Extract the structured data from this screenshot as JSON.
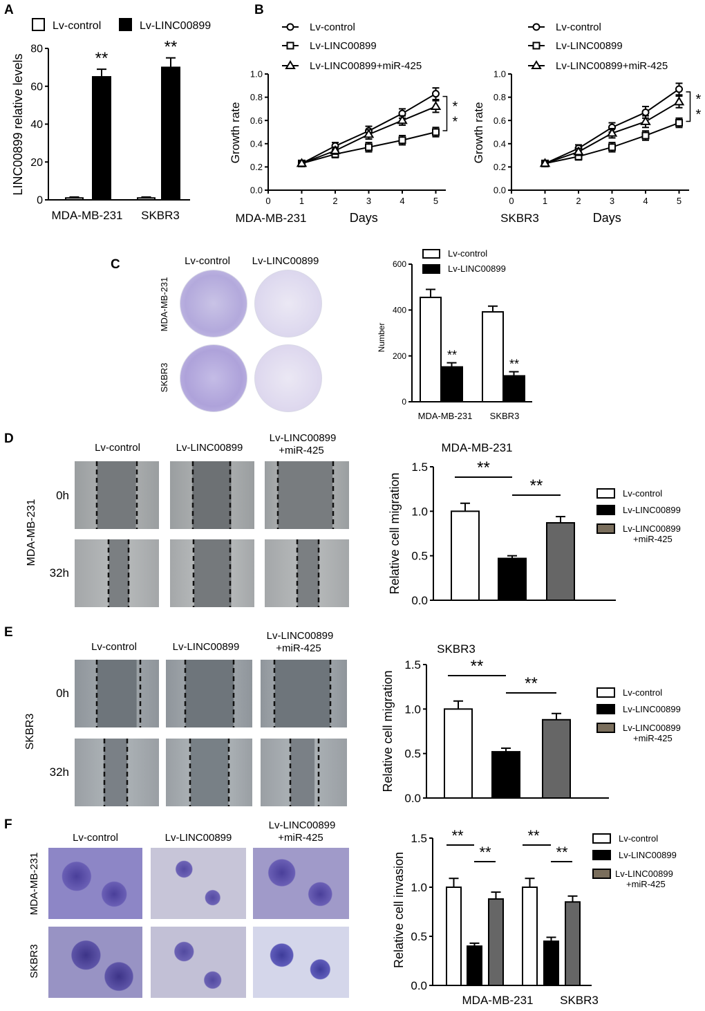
{
  "panels": {
    "A": {
      "letter": "A",
      "legend": [
        "Lv-control",
        "Lv-LINC00899"
      ],
      "sig": "**",
      "chart_data": {
        "type": "bar",
        "categories": [
          "MDA-MB-231",
          "SKBR3"
        ],
        "series": [
          {
            "name": "Lv-control",
            "values": [
              1,
              1
            ],
            "errors": [
              0.5,
              0.5
            ],
            "color": "#ffffff"
          },
          {
            "name": "Lv-LINC00899",
            "values": [
              65,
              70
            ],
            "errors": [
              4,
              5
            ],
            "color": "#000000"
          }
        ],
        "ylabel": "LINC00899 relative levels",
        "ylim": [
          0,
          80
        ],
        "yticks": [
          "0",
          "20",
          "40",
          "60",
          "80"
        ]
      }
    },
    "B": {
      "letter": "B",
      "legend": [
        "Lv-control",
        "Lv-LINC00899",
        "Lv-LINC00899+miR-425"
      ],
      "sig": "**",
      "charts": [
        {
          "type": "line",
          "cell_line": "MDA-MB-231",
          "xlabel": "Days",
          "ylabel": "Growth rate",
          "x": [
            1,
            2,
            3,
            4,
            5
          ],
          "xticks": [
            "0",
            "1",
            "2",
            "3",
            "4",
            "5"
          ],
          "yticks": [
            "0.0",
            "0.2",
            "0.4",
            "0.6",
            "0.8",
            "1.0"
          ],
          "ylim": [
            0,
            1.0
          ],
          "series": [
            {
              "name": "Lv-control",
              "marker": "circle",
              "values": [
                0.23,
                0.38,
                0.51,
                0.66,
                0.83
              ],
              "errors": [
                0.02,
                0.03,
                0.04,
                0.04,
                0.05
              ]
            },
            {
              "name": "Lv-LINC00899",
              "marker": "square",
              "values": [
                0.23,
                0.31,
                0.37,
                0.43,
                0.5
              ],
              "errors": [
                0.02,
                0.03,
                0.04,
                0.04,
                0.04
              ]
            },
            {
              "name": "Lv-LINC00899+miR-425",
              "marker": "triangle",
              "values": [
                0.23,
                0.34,
                0.48,
                0.6,
                0.72
              ],
              "errors": [
                0.02,
                0.03,
                0.04,
                0.04,
                0.05
              ]
            }
          ]
        },
        {
          "type": "line",
          "cell_line": "SKBR3",
          "xlabel": "Days",
          "ylabel": "Growth rate",
          "x": [
            1,
            2,
            3,
            4,
            5
          ],
          "xticks": [
            "0",
            "1",
            "2",
            "3",
            "4",
            "5"
          ],
          "yticks": [
            "0.0",
            "0.2",
            "0.4",
            "0.6",
            "0.8",
            "1.0"
          ],
          "ylim": [
            0,
            1.0
          ],
          "series": [
            {
              "name": "Lv-control",
              "marker": "circle",
              "values": [
                0.23,
                0.36,
                0.54,
                0.67,
                0.87
              ],
              "errors": [
                0.02,
                0.03,
                0.04,
                0.05,
                0.05
              ]
            },
            {
              "name": "Lv-LINC00899",
              "marker": "square",
              "values": [
                0.23,
                0.29,
                0.37,
                0.47,
                0.58
              ],
              "errors": [
                0.02,
                0.03,
                0.04,
                0.04,
                0.04
              ]
            },
            {
              "name": "Lv-LINC00899+miR-425",
              "marker": "triangle",
              "values": [
                0.23,
                0.33,
                0.49,
                0.59,
                0.76
              ],
              "errors": [
                0.02,
                0.03,
                0.04,
                0.05,
                0.05
              ]
            }
          ]
        }
      ]
    },
    "C": {
      "letter": "C",
      "image_cols": [
        "Lv-control",
        "Lv-LINC00899"
      ],
      "image_rows": [
        "MDA-MB-231",
        "SKBR3"
      ],
      "legend": [
        "Lv-control",
        "Lv-LINC00899"
      ],
      "sig": "**",
      "chart_data": {
        "type": "bar",
        "categories": [
          "MDA-MB-231",
          "SKBR3"
        ],
        "series": [
          {
            "name": "Lv-control",
            "values": [
              455,
              392
            ],
            "errors": [
              35,
              25
            ],
            "color": "#ffffff"
          },
          {
            "name": "Lv-LINC00899",
            "values": [
              152,
              113
            ],
            "errors": [
              18,
              18
            ],
            "color": "#000000"
          }
        ],
        "ylabel": "Number",
        "ylim": [
          0,
          600
        ],
        "yticks": [
          "0",
          "200",
          "400",
          "600"
        ]
      }
    },
    "D": {
      "letter": "D",
      "image_cols": [
        "Lv-control",
        "Lv-LINC00899",
        "Lv-LINC00899",
        "+miR-425"
      ],
      "image_rows": [
        "0h",
        "32h"
      ],
      "row_label": "MDA-MB-231",
      "legend": [
        "Lv-control",
        "Lv-LINC00899",
        "Lv-LINC00899",
        "+miR-425"
      ],
      "sig": "**",
      "chart_data": {
        "type": "bar",
        "title": "MDA-MB-231",
        "categories": [
          "Lv-control",
          "Lv-LINC00899",
          "Lv-LINC00899+miR-425"
        ],
        "values": [
          1.0,
          0.47,
          0.87
        ],
        "errors": [
          0.09,
          0.03,
          0.07
        ],
        "colors": [
          "#ffffff",
          "#000000",
          "#666666"
        ],
        "ylabel": "Relative cell migration",
        "ylim": [
          0,
          1.5
        ],
        "yticks": [
          "0.0",
          "0.5",
          "1.0",
          "1.5"
        ]
      }
    },
    "E": {
      "letter": "E",
      "image_cols": [
        "Lv-control",
        "Lv-LINC00899",
        "Lv-LINC00899",
        "+miR-425"
      ],
      "image_rows": [
        "0h",
        "32h"
      ],
      "row_label": "SKBR3",
      "legend": [
        "Lv-control",
        "Lv-LINC00899",
        "Lv-LINC00899",
        "+miR-425"
      ],
      "sig": "**",
      "chart_data": {
        "type": "bar",
        "title": "SKBR3",
        "categories": [
          "Lv-control",
          "Lv-LINC00899",
          "Lv-LINC00899+miR-425"
        ],
        "values": [
          1.0,
          0.52,
          0.88
        ],
        "errors": [
          0.09,
          0.04,
          0.07
        ],
        "colors": [
          "#ffffff",
          "#000000",
          "#666666"
        ],
        "ylabel": "Relative cell migration",
        "ylim": [
          0,
          1.5
        ],
        "yticks": [
          "0.0",
          "0.5",
          "1.0",
          "1.5"
        ]
      }
    },
    "F": {
      "letter": "F",
      "image_cols": [
        "Lv-control",
        "Lv-LINC00899",
        "Lv-LINC00899",
        "+miR-425"
      ],
      "image_rows": [
        "MDA-MB-231",
        "SKBR3"
      ],
      "legend": [
        "Lv-control",
        "Lv-LINC00899",
        "Lv-LINC00899",
        "+miR-425"
      ],
      "sig": "**",
      "chart_data": {
        "type": "bar",
        "categories": [
          "MDA-MB-231",
          "SKBR3"
        ],
        "series": [
          {
            "name": "Lv-control",
            "values": [
              1.0,
              1.0
            ],
            "errors": [
              0.09,
              0.09
            ],
            "color": "#ffffff"
          },
          {
            "name": "Lv-LINC00899",
            "values": [
              0.4,
              0.45
            ],
            "errors": [
              0.03,
              0.04
            ],
            "color": "#000000"
          },
          {
            "name": "Lv-LINC00899+miR-425",
            "values": [
              0.88,
              0.85
            ],
            "errors": [
              0.07,
              0.06
            ],
            "color": "#666666"
          }
        ],
        "ylabel": "Relative cell invasion",
        "ylim": [
          0,
          1.5
        ],
        "yticks": [
          "0.0",
          "0.5",
          "1.0",
          "1.5"
        ]
      }
    }
  }
}
